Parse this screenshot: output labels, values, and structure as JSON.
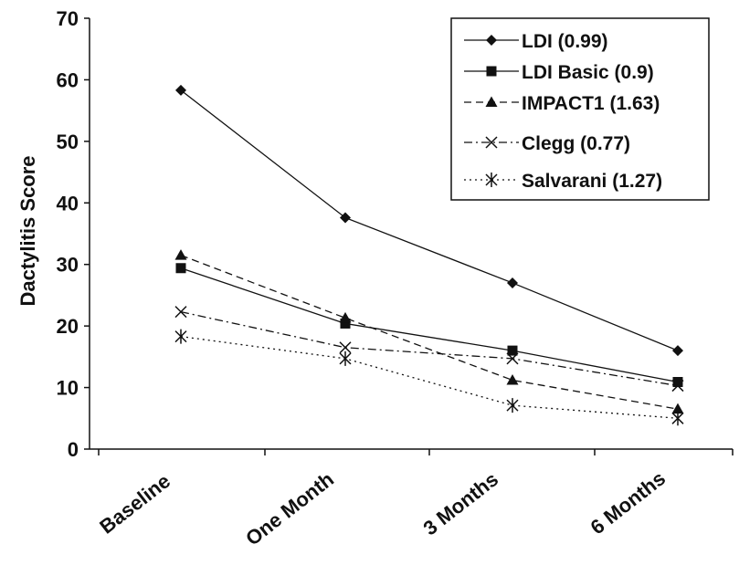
{
  "chart_data": {
    "type": "line",
    "categories": [
      "Baseline",
      "One Month",
      "3 Months",
      "6 Months"
    ],
    "ylabel": "Dactylitis Score",
    "ylim": [
      0,
      70
    ],
    "yticks": [
      0,
      10,
      20,
      30,
      40,
      50,
      60,
      70
    ],
    "grid": false,
    "legend_position": "top-right",
    "series": [
      {
        "name": "LDI (0.99)",
        "values": [
          58.3,
          37.6,
          27.0,
          16.0
        ],
        "marker": "diamond",
        "dash": "solid"
      },
      {
        "name": "LDI Basic (0.9)",
        "values": [
          29.4,
          20.4,
          16.0,
          10.9
        ],
        "marker": "square",
        "dash": "solid"
      },
      {
        "name": "IMPACT1 (1.63)",
        "values": [
          31.5,
          21.3,
          11.2,
          6.5
        ],
        "marker": "triangle",
        "dash": "dashed"
      },
      {
        "name": "Clegg (0.77)",
        "values": [
          22.3,
          16.5,
          14.7,
          10.3
        ],
        "marker": "x",
        "dash": "dashdot"
      },
      {
        "name": "Salvarani (1.27)",
        "values": [
          18.3,
          14.7,
          7.1,
          5.0
        ],
        "marker": "asterisk",
        "dash": "dotted"
      }
    ]
  }
}
